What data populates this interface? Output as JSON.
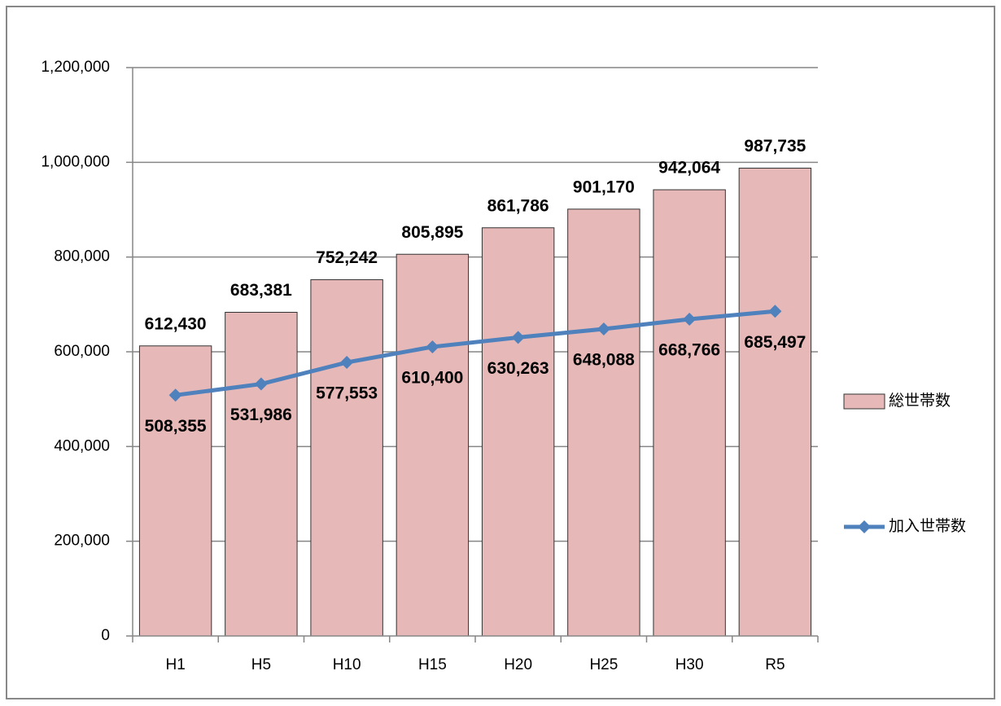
{
  "chart_data": {
    "type": "bar",
    "categories": [
      "H1",
      "H5",
      "H10",
      "H15",
      "H20",
      "H25",
      "H30",
      "R5"
    ],
    "series": [
      {
        "name": "総世帯数",
        "type": "bar",
        "color": "#e6b8b7",
        "values": [
          612430,
          683381,
          752242,
          805895,
          861786,
          901170,
          942064,
          987735
        ],
        "value_labels": [
          "612,430",
          "683,381",
          "752,242",
          "805,895",
          "861,786",
          "901,170",
          "942,064",
          "987,735"
        ]
      },
      {
        "name": "加入世帯数",
        "type": "line",
        "color": "#4f81bd",
        "values": [
          508355,
          531986,
          577553,
          610400,
          630263,
          648088,
          668766,
          685497
        ],
        "value_labels": [
          "508,355",
          "531,986",
          "577,553",
          "610,400",
          "630,263",
          "648,088",
          "668,766",
          "685,497"
        ]
      }
    ],
    "ylim": [
      0,
      1200000
    ],
    "yticks": [
      0,
      {
        "value": 200000,
        "label": "200,000"
      },
      {
        "value": 400000,
        "label": "400,000"
      },
      {
        "value": 600000,
        "label": "600,000"
      },
      {
        "value": 800000,
        "label": "800,000"
      },
      {
        "value": 1000000,
        "label": "1,000,000"
      },
      {
        "value": 1200000,
        "label": "1,200,000"
      }
    ],
    "grid": true,
    "legend": "right"
  }
}
